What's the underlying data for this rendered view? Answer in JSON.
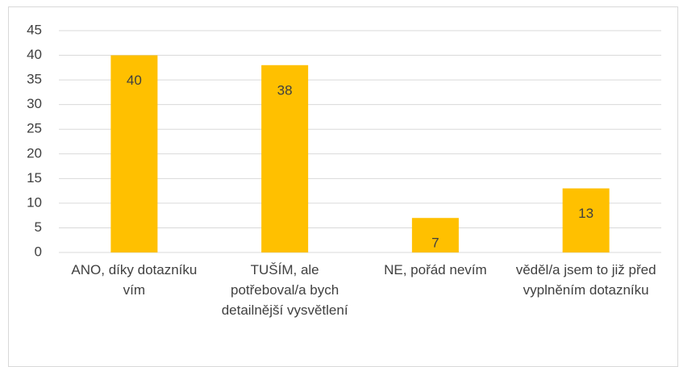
{
  "chart_data": {
    "type": "bar",
    "categories": [
      "ANO, díky dotazníku vím",
      "TUŠÍM, ale potřeboval/a bych detailnější vysvětlení",
      "NE, pořád nevím",
      "věděl/a jsem to již před vyplněním dotazníku"
    ],
    "values": [
      40,
      38,
      7,
      13
    ],
    "color": "#ffc000",
    "ylim": [
      0,
      45
    ],
    "yticks": [
      0,
      5,
      10,
      15,
      20,
      25,
      30,
      35,
      40,
      45
    ],
    "grid": true
  }
}
